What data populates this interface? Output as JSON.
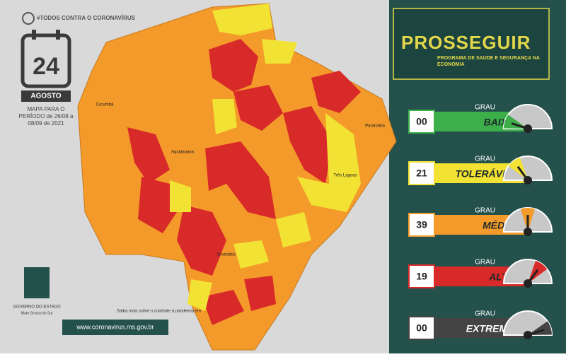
{
  "header": {
    "campaign": "#TODOS CONTRA O CORONAVÍRUS",
    "day": "24",
    "month": "AGOSTO",
    "period": "MAPA PARA O PERÍODO de 26/08 a 08/09 de 2021"
  },
  "map": {
    "labels": [
      "Corumbá",
      "Aquidauana",
      "Três Lagoas",
      "Paranaíba",
      "Dourados"
    ]
  },
  "footer": {
    "info": "Saiba mais sobre o combate à pandemia em",
    "url": "www.coronavirus.ms.gov.br",
    "government": "GOVERNO DO ESTADO",
    "state": "Mato Grosso do Sul"
  },
  "program": {
    "title": "PROSSEGUIR",
    "subtitle": "PROGRAMA DE SAÚDE E SEGURANÇA NA ECONOMIA"
  },
  "levels": [
    {
      "count": "00",
      "grau": "GRAU",
      "name": "BAIXO",
      "color": "#3cae4a"
    },
    {
      "count": "21",
      "grau": "GRAU",
      "name": "TOLERÁVEL",
      "color": "#f2e233"
    },
    {
      "count": "39",
      "grau": "GRAU",
      "name": "MÉDIO",
      "color": "#f39a2a"
    },
    {
      "count": "19",
      "grau": "GRAU",
      "name": "ALTO",
      "color": "#d92a2a"
    },
    {
      "count": "00",
      "grau": "GRAU",
      "name": "EXTREMO",
      "color": "#444444"
    }
  ]
}
